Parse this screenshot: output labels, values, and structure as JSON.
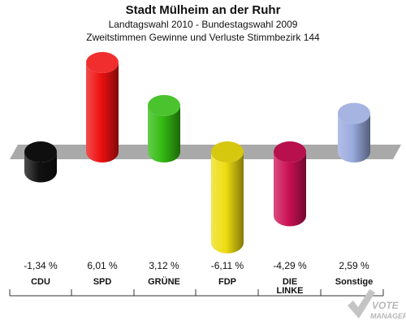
{
  "header": {
    "title": "Stadt Mülheim an der Ruhr",
    "subtitle1": "Landtagswahl 2010 - Bundestagswahl 2009",
    "subtitle2": "Zweitstimmen Gewinne und Verluste Stimmbezirk 144"
  },
  "chart_data": {
    "type": "bar",
    "title": "Stadt Mülheim an der Ruhr",
    "categories": [
      "CDU",
      "SPD",
      "GRÜNE",
      "FDP",
      "DIE LINKE",
      "Sonstige"
    ],
    "category_lines": [
      [
        "CDU"
      ],
      [
        "SPD"
      ],
      [
        "GRÜNE"
      ],
      [
        "FDP"
      ],
      [
        "DIE",
        "LINKE"
      ],
      [
        "Sonstige"
      ]
    ],
    "values": [
      -1.34,
      6.01,
      3.12,
      -6.11,
      -4.29,
      2.59
    ],
    "value_labels": [
      "-1,34 %",
      "6,01 %",
      "3,12 %",
      "-6,11 %",
      "-4,29 %",
      "2,59 %"
    ],
    "colors": [
      "#111111",
      "#ee1111",
      "#33bb11",
      "#eedd11",
      "#cc1155",
      "#99aadd"
    ],
    "grid": false,
    "legend": "none"
  },
  "logo": {
    "line1": "VOTE",
    "line2": "MANAGER"
  }
}
